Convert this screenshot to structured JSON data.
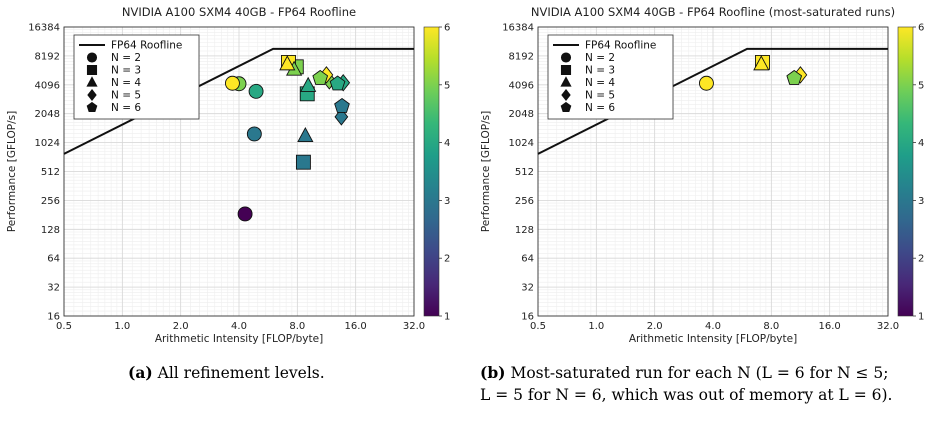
{
  "chart_data": [
    {
      "type": "scatter",
      "title": "NVIDIA A100 SXM4 40GB - FP64 Roofline",
      "xlabel": "Arithmetic Intensity [FLOP/byte]",
      "ylabel": "Performance [GFLOP/s]",
      "x_scale": "log2",
      "y_scale": "log2",
      "xlim": [
        0.5,
        32
      ],
      "ylim": [
        16,
        16384
      ],
      "x_ticks": [
        "0.5",
        "1.0",
        "2.0",
        "4.0",
        "8.0",
        "16.0",
        "32.0"
      ],
      "y_ticks": [
        "16",
        "32",
        "64",
        "128",
        "256",
        "512",
        "1024",
        "2048",
        "4096",
        "8192",
        "16384"
      ],
      "colorbar": {
        "min": 1,
        "max": 6,
        "ticks": [
          "1",
          "2",
          "3",
          "4",
          "5",
          "6"
        ],
        "colormap": "viridis"
      },
      "legend": {
        "placement": "top-left",
        "entries": [
          {
            "label": "FP64 Roofline",
            "marker": "line"
          },
          {
            "label": "N = 2",
            "marker": "circle"
          },
          {
            "label": "N = 3",
            "marker": "square"
          },
          {
            "label": "N = 4",
            "marker": "triangle"
          },
          {
            "label": "N = 5",
            "marker": "diamond"
          },
          {
            "label": "N = 6",
            "marker": "pentagon"
          }
        ]
      },
      "roofline": [
        [
          0.5,
          780
        ],
        [
          6.0,
          9700
        ],
        [
          32,
          9700
        ]
      ],
      "grid": true,
      "points": [
        {
          "n": 2,
          "L": 1,
          "x": 4.3,
          "y": 185
        },
        {
          "n": 2,
          "L": 3,
          "x": 4.8,
          "y": 1260
        },
        {
          "n": 2,
          "L": 4,
          "x": 4.9,
          "y": 3500
        },
        {
          "n": 2,
          "L": 5,
          "x": 4.0,
          "y": 4200
        },
        {
          "n": 2,
          "L": 6,
          "x": 3.7,
          "y": 4250
        },
        {
          "n": 3,
          "L": 3,
          "x": 8.6,
          "y": 640
        },
        {
          "n": 3,
          "L": 4,
          "x": 9.0,
          "y": 3300
        },
        {
          "n": 3,
          "L": 5,
          "x": 7.9,
          "y": 6300
        },
        {
          "n": 3,
          "L": 6,
          "x": 7.2,
          "y": 7000
        },
        {
          "n": 4,
          "L": 3,
          "x": 8.8,
          "y": 1200
        },
        {
          "n": 4,
          "L": 4,
          "x": 9.1,
          "y": 4000
        },
        {
          "n": 4,
          "L": 5,
          "x": 7.7,
          "y": 5900
        },
        {
          "n": 4,
          "L": 6,
          "x": 7.1,
          "y": 6700
        },
        {
          "n": 5,
          "L": 3,
          "x": 13.5,
          "y": 1900
        },
        {
          "n": 5,
          "L": 4,
          "x": 13.8,
          "y": 4300
        },
        {
          "n": 5,
          "L": 5,
          "x": 11.7,
          "y": 4500
        },
        {
          "n": 5,
          "L": 6,
          "x": 11.3,
          "y": 5200
        },
        {
          "n": 6,
          "L": 3,
          "x": 13.6,
          "y": 2450
        },
        {
          "n": 6,
          "L": 4,
          "x": 12.9,
          "y": 4200
        },
        {
          "n": 6,
          "L": 5,
          "x": 10.5,
          "y": 4800
        }
      ]
    },
    {
      "type": "scatter",
      "title": "NVIDIA A100 SXM4 40GB - FP64 Roofline (most-saturated runs)",
      "xlabel": "Arithmetic Intensity [FLOP/byte]",
      "ylabel": "Performance [GFLOP/s]",
      "x_scale": "log2",
      "y_scale": "log2",
      "xlim": [
        0.5,
        32
      ],
      "ylim": [
        16,
        16384
      ],
      "x_ticks": [
        "0.5",
        "1.0",
        "2.0",
        "4.0",
        "8.0",
        "16.0",
        "32.0"
      ],
      "y_ticks": [
        "16",
        "32",
        "64",
        "128",
        "256",
        "512",
        "1024",
        "2048",
        "4096",
        "8192",
        "16384"
      ],
      "colorbar": {
        "min": 1,
        "max": 6,
        "ticks": [
          "1",
          "2",
          "3",
          "4",
          "5",
          "6"
        ],
        "colormap": "viridis"
      },
      "legend": {
        "placement": "top-left",
        "entries": [
          {
            "label": "FP64 Roofline",
            "marker": "line"
          },
          {
            "label": "N = 2",
            "marker": "circle"
          },
          {
            "label": "N = 3",
            "marker": "square"
          },
          {
            "label": "N = 4",
            "marker": "triangle"
          },
          {
            "label": "N = 5",
            "marker": "diamond"
          },
          {
            "label": "N = 6",
            "marker": "pentagon"
          }
        ]
      },
      "roofline": [
        [
          0.5,
          780
        ],
        [
          6.0,
          9700
        ],
        [
          32,
          9700
        ]
      ],
      "grid": true,
      "points": [
        {
          "n": 2,
          "L": 6,
          "x": 3.7,
          "y": 4250
        },
        {
          "n": 3,
          "L": 6,
          "x": 7.2,
          "y": 7000
        },
        {
          "n": 4,
          "L": 6,
          "x": 7.1,
          "y": 6700
        },
        {
          "n": 5,
          "L": 6,
          "x": 11.3,
          "y": 5200
        },
        {
          "n": 6,
          "L": 5,
          "x": 10.5,
          "y": 4800
        }
      ]
    }
  ],
  "captions": {
    "a_label": "(a)",
    "a_text": " All refinement levels.",
    "b_label": "(b)",
    "b_line1": " Most-saturated run for each N (L = 6 for N ≤ 5;",
    "b_line2": "L = 5 for N = 6, which was out of memory at L = 6)."
  }
}
